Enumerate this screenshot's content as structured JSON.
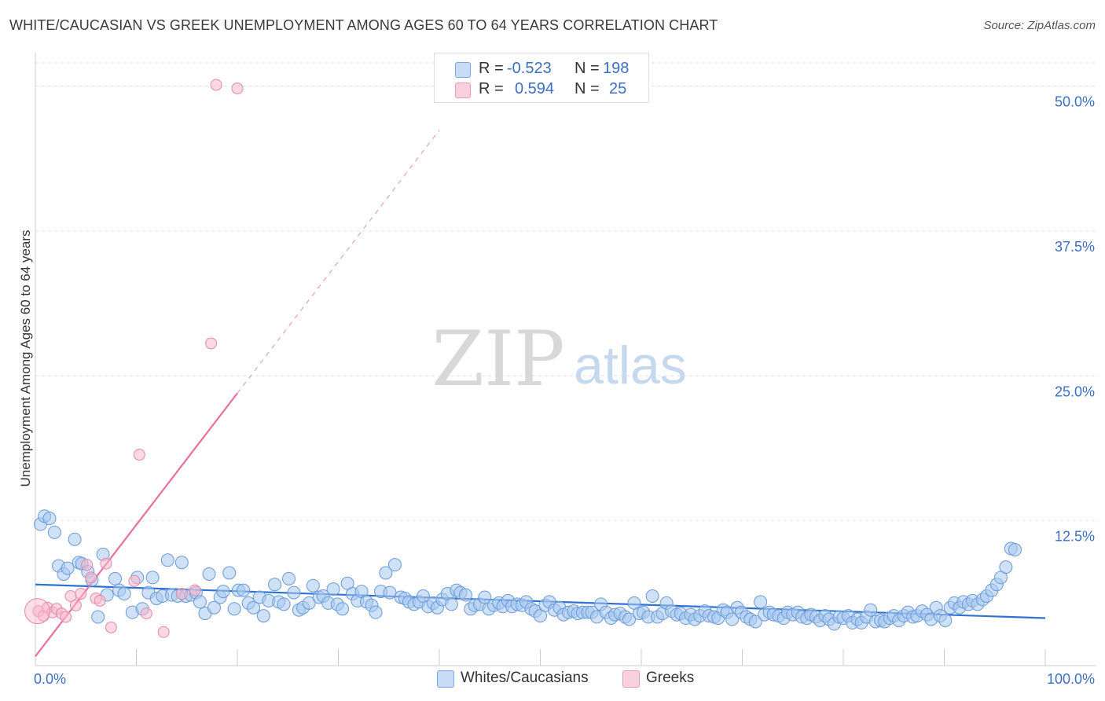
{
  "header": {
    "title": "WHITE/CAUCASIAN VS GREEK UNEMPLOYMENT AMONG AGES 60 TO 64 YEARS CORRELATION CHART",
    "source": "Source: ZipAtlas.com"
  },
  "watermark": {
    "zip": "ZIP",
    "atlas": "atlas"
  },
  "legend": {
    "rows": [
      {
        "r_label": "R =",
        "r_value": "-0.523",
        "n_label": "N =",
        "n_value": "198",
        "color": "#a8c8f0"
      },
      {
        "r_label": "R =",
        "r_value": "0.594",
        "n_label": "N =",
        "n_value": "25",
        "color": "#f8b8cc"
      }
    ]
  },
  "bottom_legend": {
    "whites": "Whites/Caucasians",
    "greeks": "Greeks"
  },
  "chart_data": {
    "type": "scatter",
    "title": "WHITE/CAUCASIAN VS GREEK UNEMPLOYMENT AMONG AGES 60 TO 64 YEARS CORRELATION CHART",
    "xlabel": "",
    "ylabel": "Unemployment Among Ages 60 to 64 years",
    "xlim": [
      0,
      100
    ],
    "ylim": [
      0,
      52
    ],
    "x_tick_labels": [
      "0.0%",
      "100.0%"
    ],
    "y_ticks": [
      12.5,
      25.0,
      37.5,
      50.0
    ],
    "y_tick_labels": [
      "12.5%",
      "25.0%",
      "37.5%",
      "50.0%"
    ],
    "grid": true,
    "colors": {
      "whites": "#a8c8f0",
      "whites_edge": "#6a9ad8",
      "whites_line": "#2f72d0",
      "greeks": "#f8b8cc",
      "greeks_edge": "#e888a8",
      "greeks_line": "#e8709a",
      "tick_label": "#3b6fc4"
    },
    "series": [
      {
        "name": "Whites/Caucasians",
        "trend": {
          "x": [
            0,
            100
          ],
          "y": [
            7.0,
            4.1
          ]
        },
        "points": [
          [
            0.5,
            12.2
          ],
          [
            0.9,
            12.9
          ],
          [
            1.4,
            12.7
          ],
          [
            1.9,
            11.5
          ],
          [
            2.3,
            8.6
          ],
          [
            2.8,
            7.9
          ],
          [
            3.2,
            8.4
          ],
          [
            3.9,
            10.9
          ],
          [
            4.3,
            8.9
          ],
          [
            4.6,
            8.8
          ],
          [
            5.2,
            8.1
          ],
          [
            5.6,
            7.4
          ],
          [
            6.2,
            4.2
          ],
          [
            6.7,
            9.6
          ],
          [
            7.1,
            6.1
          ],
          [
            7.9,
            7.5
          ],
          [
            8.3,
            6.5
          ],
          [
            8.8,
            6.2
          ],
          [
            9.6,
            4.6
          ],
          [
            10.1,
            7.6
          ],
          [
            10.6,
            4.9
          ],
          [
            11.2,
            6.3
          ],
          [
            11.6,
            7.6
          ],
          [
            12.0,
            5.8
          ],
          [
            12.6,
            6.0
          ],
          [
            13.1,
            9.1
          ],
          [
            13.5,
            6.1
          ],
          [
            14.1,
            6.0
          ],
          [
            14.5,
            8.9
          ],
          [
            14.9,
            6.0
          ],
          [
            15.4,
            6.1
          ],
          [
            15.9,
            6.3
          ],
          [
            16.3,
            5.5
          ],
          [
            16.8,
            4.5
          ],
          [
            17.2,
            7.9
          ],
          [
            17.7,
            5.0
          ],
          [
            18.3,
            5.9
          ],
          [
            18.6,
            6.4
          ],
          [
            19.2,
            8.0
          ],
          [
            19.7,
            4.9
          ],
          [
            20.1,
            6.5
          ],
          [
            20.6,
            6.5
          ],
          [
            21.1,
            5.4
          ],
          [
            21.6,
            5.0
          ],
          [
            22.2,
            5.9
          ],
          [
            22.6,
            4.3
          ],
          [
            23.1,
            5.6
          ],
          [
            23.7,
            7.0
          ],
          [
            24.1,
            5.5
          ],
          [
            24.6,
            5.3
          ],
          [
            25.1,
            7.5
          ],
          [
            25.6,
            6.3
          ],
          [
            26.1,
            4.8
          ],
          [
            26.5,
            5.0
          ],
          [
            27.1,
            5.4
          ],
          [
            27.5,
            6.9
          ],
          [
            28.1,
            5.9
          ],
          [
            28.5,
            6.0
          ],
          [
            29.0,
            5.4
          ],
          [
            29.5,
            6.6
          ],
          [
            29.9,
            5.3
          ],
          [
            30.4,
            4.9
          ],
          [
            30.9,
            7.1
          ],
          [
            31.4,
            6.2
          ],
          [
            31.9,
            5.6
          ],
          [
            32.3,
            6.4
          ],
          [
            32.8,
            5.5
          ],
          [
            33.3,
            5.2
          ],
          [
            33.7,
            4.6
          ],
          [
            34.2,
            6.4
          ],
          [
            34.7,
            8.0
          ],
          [
            35.1,
            6.3
          ],
          [
            35.6,
            8.7
          ],
          [
            36.2,
            5.9
          ],
          [
            36.6,
            5.8
          ],
          [
            37.0,
            5.5
          ],
          [
            37.5,
            5.3
          ],
          [
            38.0,
            5.5
          ],
          [
            38.4,
            6.0
          ],
          [
            38.9,
            5.1
          ],
          [
            39.4,
            5.4
          ],
          [
            39.8,
            5.0
          ],
          [
            40.3,
            5.7
          ],
          [
            40.8,
            6.2
          ],
          [
            41.2,
            5.3
          ],
          [
            41.7,
            6.5
          ],
          [
            42.1,
            6.3
          ],
          [
            42.6,
            6.1
          ],
          [
            43.1,
            4.9
          ],
          [
            43.5,
            5.2
          ],
          [
            44.0,
            5.3
          ],
          [
            44.5,
            5.9
          ],
          [
            44.9,
            4.9
          ],
          [
            45.4,
            5.2
          ],
          [
            45.9,
            5.4
          ],
          [
            46.3,
            5.1
          ],
          [
            46.8,
            5.6
          ],
          [
            47.2,
            5.1
          ],
          [
            47.7,
            5.3
          ],
          [
            48.2,
            5.2
          ],
          [
            48.6,
            5.5
          ],
          [
            49.1,
            4.9
          ],
          [
            49.5,
            4.7
          ],
          [
            50.0,
            4.3
          ],
          [
            50.5,
            5.2
          ],
          [
            50.9,
            5.5
          ],
          [
            51.4,
            4.8
          ],
          [
            51.9,
            5.0
          ],
          [
            52.3,
            4.4
          ],
          [
            52.8,
            4.6
          ],
          [
            53.3,
            4.7
          ],
          [
            53.7,
            4.5
          ],
          [
            54.2,
            4.6
          ],
          [
            54.7,
            4.6
          ],
          [
            55.1,
            4.6
          ],
          [
            55.6,
            4.2
          ],
          [
            56.0,
            5.3
          ],
          [
            56.5,
            4.6
          ],
          [
            57.0,
            4.1
          ],
          [
            57.4,
            4.4
          ],
          [
            57.9,
            4.5
          ],
          [
            58.4,
            4.2
          ],
          [
            58.8,
            4.0
          ],
          [
            59.3,
            5.4
          ],
          [
            59.8,
            4.5
          ],
          [
            60.2,
            4.6
          ],
          [
            60.7,
            4.2
          ],
          [
            61.1,
            6.0
          ],
          [
            61.6,
            4.2
          ],
          [
            62.1,
            4.5
          ],
          [
            62.5,
            5.4
          ],
          [
            63.0,
            4.7
          ],
          [
            63.5,
            4.4
          ],
          [
            63.9,
            4.5
          ],
          [
            64.4,
            4.1
          ],
          [
            64.9,
            4.4
          ],
          [
            65.3,
            4.0
          ],
          [
            65.8,
            4.3
          ],
          [
            66.3,
            4.7
          ],
          [
            66.7,
            4.3
          ],
          [
            67.2,
            4.2
          ],
          [
            67.6,
            4.1
          ],
          [
            68.1,
            4.8
          ],
          [
            68.5,
            4.6
          ],
          [
            69.0,
            4.0
          ],
          [
            69.5,
            5.0
          ],
          [
            69.9,
            4.6
          ],
          [
            70.4,
            4.2
          ],
          [
            70.8,
            4.0
          ],
          [
            71.3,
            3.8
          ],
          [
            71.8,
            5.5
          ],
          [
            72.2,
            4.4
          ],
          [
            72.7,
            4.6
          ],
          [
            73.1,
            4.4
          ],
          [
            73.6,
            4.3
          ],
          [
            74.1,
            4.1
          ],
          [
            74.5,
            4.6
          ],
          [
            75.0,
            4.4
          ],
          [
            75.5,
            4.6
          ],
          [
            75.9,
            4.2
          ],
          [
            76.4,
            4.1
          ],
          [
            76.8,
            4.4
          ],
          [
            77.3,
            4.2
          ],
          [
            77.7,
            3.9
          ],
          [
            78.2,
            4.3
          ],
          [
            78.6,
            4.0
          ],
          [
            79.1,
            3.6
          ],
          [
            79.6,
            4.2
          ],
          [
            80.0,
            4.1
          ],
          [
            80.5,
            4.3
          ],
          [
            80.9,
            3.7
          ],
          [
            81.4,
            4.0
          ],
          [
            81.8,
            3.7
          ],
          [
            82.3,
            4.2
          ],
          [
            82.7,
            4.8
          ],
          [
            83.2,
            3.8
          ],
          [
            83.7,
            3.9
          ],
          [
            84.1,
            3.8
          ],
          [
            84.6,
            4.1
          ],
          [
            85.0,
            4.3
          ],
          [
            85.5,
            3.9
          ],
          [
            86.0,
            4.3
          ],
          [
            86.4,
            4.6
          ],
          [
            86.9,
            4.2
          ],
          [
            87.3,
            4.3
          ],
          [
            87.8,
            4.7
          ],
          [
            88.3,
            4.4
          ],
          [
            88.7,
            4.0
          ],
          [
            89.2,
            5.0
          ],
          [
            89.6,
            4.3
          ],
          [
            90.1,
            3.9
          ],
          [
            90.6,
            5.0
          ],
          [
            91.0,
            5.4
          ],
          [
            91.5,
            5.0
          ],
          [
            91.9,
            5.5
          ],
          [
            92.4,
            5.3
          ],
          [
            92.8,
            5.6
          ],
          [
            93.3,
            5.3
          ],
          [
            93.8,
            5.7
          ],
          [
            94.2,
            6.0
          ],
          [
            94.7,
            6.5
          ],
          [
            95.2,
            7.0
          ],
          [
            95.6,
            7.6
          ],
          [
            96.1,
            8.5
          ],
          [
            96.6,
            10.1
          ],
          [
            97.0,
            10.0
          ]
        ]
      },
      {
        "name": "Greeks",
        "trend": {
          "x": [
            0,
            20
          ],
          "y": [
            0.8,
            23.5
          ],
          "extended_to": [
            40,
            46.2
          ]
        },
        "points": [
          [
            0.3,
            4.7
          ],
          [
            0.8,
            4.3
          ],
          [
            1.2,
            5.0
          ],
          [
            1.7,
            4.6
          ],
          [
            2.1,
            4.9
          ],
          [
            2.6,
            4.5
          ],
          [
            3.0,
            4.2
          ],
          [
            3.5,
            6.0
          ],
          [
            4.0,
            5.2
          ],
          [
            4.5,
            6.2
          ],
          [
            5.1,
            8.7
          ],
          [
            5.5,
            7.6
          ],
          [
            6.0,
            5.8
          ],
          [
            6.4,
            5.6
          ],
          [
            7.0,
            8.8
          ],
          [
            7.5,
            3.3
          ],
          [
            9.8,
            7.3
          ],
          [
            10.3,
            18.2
          ],
          [
            11.0,
            4.5
          ],
          [
            12.7,
            2.9
          ],
          [
            14.5,
            6.2
          ],
          [
            15.8,
            6.5
          ],
          [
            17.4,
            27.8
          ],
          [
            17.9,
            50.1
          ],
          [
            20.0,
            49.8
          ]
        ]
      }
    ]
  }
}
